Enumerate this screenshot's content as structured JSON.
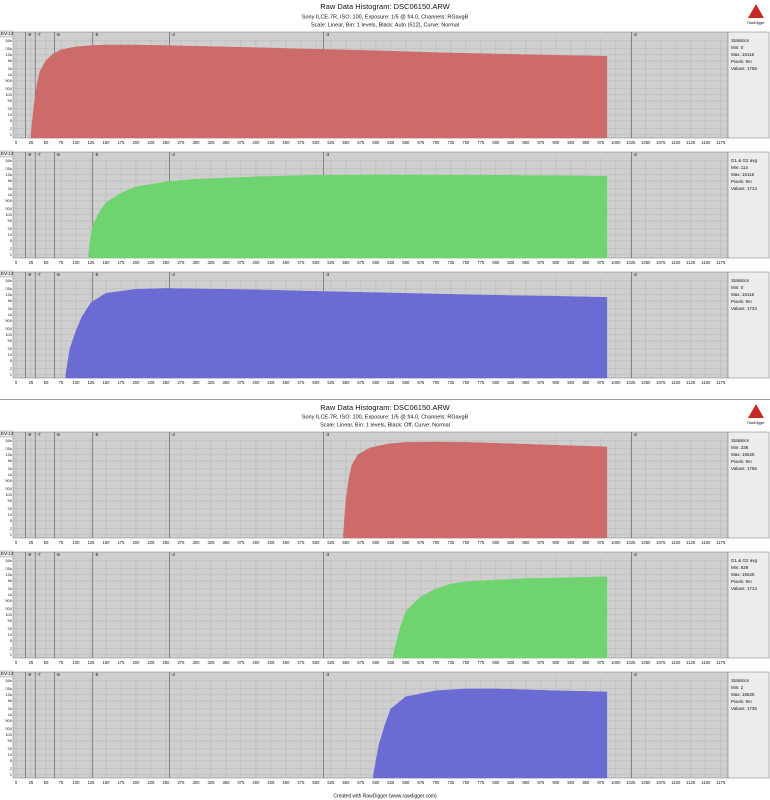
{
  "headers": [
    {
      "title": "Raw Data Histogram: DSC06150.ARW",
      "camera": "Sony ILCE-7R, ISO: 100, Exposure: 1/5 @ f/4.0, Channels: RGavgB",
      "settings": "Scale: Linear, Bin: 1 levels, Black: Auto (512), Curve: Normal",
      "logo": "RawDigger"
    },
    {
      "title": "Raw Data Histogram: DSC06150.ARW",
      "camera": "Sony ILCE-7R, ISO: 100, Exposure: 1/5 @ f/4.0, Channels: RGavgB",
      "settings": "Scale: Linear, Bin: 1 levels, Black: Off, Curve: Normal",
      "logo": "RawDigger",
      "footer": "Created with RawDigger (www.rawdigger.com)"
    }
  ],
  "chart_data": [
    {
      "type": "area",
      "color": "#cd6b6b",
      "log": true,
      "grid": true,
      "ev_label": "EV-13",
      "x": [
        25,
        30,
        35,
        40,
        50,
        60,
        75,
        100,
        125,
        150,
        200,
        250,
        300,
        400,
        500,
        600,
        700,
        800,
        900,
        985
      ],
      "values": [
        1,
        30,
        300,
        1500,
        5000,
        10000,
        18000,
        25000,
        29000,
        31000,
        31000,
        29000,
        27000,
        23000,
        19000,
        16000,
        13000,
        11000,
        9500,
        8500
      ],
      "xlim": [
        -5,
        1187
      ],
      "ylim": [
        0.7,
        70000
      ],
      "xticks": [
        0,
        25,
        50,
        75,
        100,
        125,
        150,
        175,
        200,
        225,
        250,
        275,
        300,
        325,
        350,
        375,
        400,
        425,
        450,
        475,
        500,
        525,
        550,
        575,
        600,
        625,
        650,
        675,
        700,
        725,
        750,
        775,
        800,
        825,
        850,
        875,
        900,
        925,
        950,
        975,
        1000,
        1025,
        1050,
        1075,
        1100,
        1125,
        1150,
        1175
      ],
      "yticks": [
        1,
        2,
        5,
        10,
        20,
        50,
        100,
        200,
        500,
        {
          "value": 1000,
          "label": "1k"
        },
        {
          "value": 2000,
          "label": "2k"
        },
        {
          "value": 5000,
          "label": "5k"
        },
        {
          "value": 10000,
          "label": "10k"
        },
        {
          "value": 20000,
          "label": "20k"
        },
        {
          "value": 50000,
          "label": "50k"
        }
      ],
      "evticks": [
        {
          "value": 16,
          "label": "-8"
        },
        {
          "value": 32,
          "label": "-7"
        },
        {
          "value": 64,
          "label": "-6"
        },
        {
          "value": 128,
          "label": "-5"
        },
        {
          "value": 256,
          "label": "-4"
        },
        {
          "value": 513,
          "label": "-3"
        },
        {
          "value": 1026,
          "label": "-2"
        }
      ],
      "stats": [
        "Statistics",
        "Min: 0",
        "Max: 16116",
        "Pixels: 9m",
        "Values: 1758"
      ]
    },
    {
      "type": "area",
      "color": "#6fd46f",
      "log": true,
      "grid": true,
      "ev_label": "EV-13",
      "x": [
        121,
        125,
        130,
        140,
        150,
        175,
        200,
        250,
        300,
        400,
        500,
        600,
        700,
        800,
        900,
        985
      ],
      "values": [
        1,
        10,
        40,
        150,
        400,
        1200,
        2500,
        4500,
        6000,
        8000,
        9500,
        10000,
        9800,
        9500,
        9000,
        8500
      ],
      "xlim": [
        -5,
        1187
      ],
      "ylim": [
        0.7,
        70000
      ],
      "xticks": [
        0,
        25,
        50,
        75,
        100,
        125,
        150,
        175,
        200,
        225,
        250,
        275,
        300,
        325,
        350,
        375,
        400,
        425,
        450,
        475,
        500,
        525,
        550,
        575,
        600,
        625,
        650,
        675,
        700,
        725,
        750,
        775,
        800,
        825,
        850,
        875,
        900,
        925,
        950,
        975,
        1000,
        1025,
        1050,
        1075,
        1100,
        1125,
        1150,
        1175
      ],
      "yticks": [
        1,
        2,
        5,
        10,
        20,
        50,
        100,
        200,
        500,
        {
          "value": 1000,
          "label": "1k"
        },
        {
          "value": 2000,
          "label": "2k"
        },
        {
          "value": 5000,
          "label": "5k"
        },
        {
          "value": 10000,
          "label": "10k"
        },
        {
          "value": 20000,
          "label": "20k"
        },
        {
          "value": 50000,
          "label": "50k"
        }
      ],
      "evticks": [
        {
          "value": 16,
          "label": "-8"
        },
        {
          "value": 32,
          "label": "-7"
        },
        {
          "value": 64,
          "label": "-6"
        },
        {
          "value": 128,
          "label": "-5"
        },
        {
          "value": 256,
          "label": "-4"
        },
        {
          "value": 513,
          "label": "-3"
        },
        {
          "value": 1026,
          "label": "-2"
        }
      ],
      "stats": [
        "G1 & G2 avg",
        "Min: 114",
        "Max: 16116",
        "Pixels: 9m",
        "Values: 1714"
      ]
    },
    {
      "type": "area",
      "color": "#6b6bd4",
      "log": true,
      "grid": true,
      "ev_label": "EV-13",
      "x": [
        83,
        90,
        100,
        110,
        125,
        150,
        200,
        250,
        300,
        400,
        500,
        600,
        700,
        800,
        900,
        985
      ],
      "values": [
        1,
        20,
        150,
        800,
        4000,
        12000,
        19000,
        21000,
        20000,
        18000,
        15000,
        13000,
        11000,
        9500,
        8500,
        7500
      ],
      "xlim": [
        -5,
        1187
      ],
      "ylim": [
        0.7,
        70000
      ],
      "xticks": [
        0,
        25,
        50,
        75,
        100,
        125,
        150,
        175,
        200,
        225,
        250,
        275,
        300,
        325,
        350,
        375,
        400,
        425,
        450,
        475,
        500,
        525,
        550,
        575,
        600,
        625,
        650,
        675,
        700,
        725,
        750,
        775,
        800,
        825,
        850,
        875,
        900,
        925,
        950,
        975,
        1000,
        1025,
        1050,
        1075,
        1100,
        1125,
        1150,
        1175
      ],
      "yticks": [
        1,
        2,
        5,
        10,
        20,
        50,
        100,
        200,
        500,
        {
          "value": 1000,
          "label": "1k"
        },
        {
          "value": 2000,
          "label": "2k"
        },
        {
          "value": 5000,
          "label": "5k"
        },
        {
          "value": 10000,
          "label": "10k"
        },
        {
          "value": 20000,
          "label": "20k"
        },
        {
          "value": 50000,
          "label": "50k"
        }
      ],
      "evticks": [
        {
          "value": 16,
          "label": "-8"
        },
        {
          "value": 32,
          "label": "-7"
        },
        {
          "value": 64,
          "label": "-6"
        },
        {
          "value": 128,
          "label": "-5"
        },
        {
          "value": 256,
          "label": "-4"
        },
        {
          "value": 513,
          "label": "-3"
        },
        {
          "value": 1026,
          "label": "-2"
        }
      ],
      "stats": [
        "Statistics",
        "Min: 0",
        "Max: 16116",
        "Pixels: 9m",
        "Values: 1734"
      ]
    },
    {
      "type": "area",
      "color": "#cd6b6b",
      "log": true,
      "grid": true,
      "ev_label": "EV-13",
      "x": [
        546,
        550,
        555,
        560,
        570,
        590,
        620,
        650,
        700,
        750,
        800,
        900,
        985
      ],
      "values": [
        1,
        50,
        600,
        3000,
        10000,
        22000,
        35000,
        42000,
        44000,
        42000,
        38000,
        30000,
        25000
      ],
      "xlim": [
        -5,
        1187
      ],
      "ylim": [
        0.7,
        70000
      ],
      "xticks": [
        0,
        25,
        50,
        75,
        100,
        125,
        150,
        175,
        200,
        225,
        250,
        275,
        300,
        325,
        350,
        375,
        400,
        425,
        450,
        475,
        500,
        525,
        550,
        575,
        600,
        625,
        650,
        675,
        700,
        725,
        750,
        775,
        800,
        825,
        850,
        875,
        900,
        925,
        950,
        975,
        1000,
        1025,
        1050,
        1075,
        1100,
        1125,
        1150,
        1175
      ],
      "yticks": [
        1,
        2,
        5,
        10,
        20,
        50,
        100,
        200,
        500,
        {
          "value": 1000,
          "label": "1k"
        },
        {
          "value": 2000,
          "label": "2k"
        },
        {
          "value": 5000,
          "label": "5k"
        },
        {
          "value": 10000,
          "label": "10k"
        },
        {
          "value": 20000,
          "label": "20k"
        },
        {
          "value": 50000,
          "label": "50k"
        }
      ],
      "evticks": [
        {
          "value": 16,
          "label": "-8"
        },
        {
          "value": 32,
          "label": "-7"
        },
        {
          "value": 64,
          "label": "-6"
        },
        {
          "value": 128,
          "label": "-5"
        },
        {
          "value": 256,
          "label": "-4"
        },
        {
          "value": 513,
          "label": "-3"
        },
        {
          "value": 1026,
          "label": "-2"
        }
      ],
      "stats": [
        "Statistics",
        "Min: 336",
        "Max: 16626",
        "Pixels: 9m",
        "Values: 1756"
      ]
    },
    {
      "type": "area",
      "color": "#6fd46f",
      "log": true,
      "grid": true,
      "ev_label": "EV-13",
      "x": [
        629,
        640,
        650,
        675,
        700,
        725,
        750,
        800,
        850,
        900,
        950,
        985
      ],
      "values": [
        1,
        20,
        150,
        800,
        2000,
        3500,
        4500,
        5500,
        6500,
        7000,
        7500,
        8000
      ],
      "xlim": [
        -5,
        1187
      ],
      "ylim": [
        0.7,
        70000
      ],
      "xticks": [
        0,
        25,
        50,
        75,
        100,
        125,
        150,
        175,
        200,
        225,
        250,
        275,
        300,
        325,
        350,
        375,
        400,
        425,
        450,
        475,
        500,
        525,
        550,
        575,
        600,
        625,
        650,
        675,
        700,
        725,
        750,
        775,
        800,
        825,
        850,
        875,
        900,
        925,
        950,
        975,
        1000,
        1025,
        1050,
        1075,
        1100,
        1125,
        1150,
        1175
      ],
      "yticks": [
        1,
        2,
        5,
        10,
        20,
        50,
        100,
        200,
        500,
        {
          "value": 1000,
          "label": "1k"
        },
        {
          "value": 2000,
          "label": "2k"
        },
        {
          "value": 5000,
          "label": "5k"
        },
        {
          "value": 10000,
          "label": "10k"
        },
        {
          "value": 20000,
          "label": "20k"
        },
        {
          "value": 50000,
          "label": "50k"
        }
      ],
      "evticks": [
        {
          "value": 16,
          "label": "-8"
        },
        {
          "value": 32,
          "label": "-7"
        },
        {
          "value": 64,
          "label": "-6"
        },
        {
          "value": 128,
          "label": "-5"
        },
        {
          "value": 256,
          "label": "-4"
        },
        {
          "value": 513,
          "label": "-3"
        },
        {
          "value": 1026,
          "label": "-2"
        }
      ],
      "stats": [
        "G1 & G2 avg",
        "Min: 828",
        "Max: 16626",
        "Pixels: 9m",
        "Values: 1714"
      ]
    },
    {
      "type": "area",
      "color": "#6b6bd4",
      "log": true,
      "grid": true,
      "ev_label": "EV-13",
      "x": [
        596,
        605,
        615,
        625,
        650,
        700,
        750,
        800,
        850,
        900,
        950,
        985
      ],
      "values": [
        1,
        30,
        300,
        2000,
        8000,
        16000,
        20000,
        20000,
        18000,
        16000,
        15000,
        14000
      ],
      "xlim": [
        -5,
        1187
      ],
      "ylim": [
        0.7,
        70000
      ],
      "xticks": [
        0,
        25,
        50,
        75,
        100,
        125,
        150,
        175,
        200,
        225,
        250,
        275,
        300,
        325,
        350,
        375,
        400,
        425,
        450,
        475,
        500,
        525,
        550,
        575,
        600,
        625,
        650,
        675,
        700,
        725,
        750,
        775,
        800,
        825,
        850,
        875,
        900,
        925,
        950,
        975,
        1000,
        1025,
        1050,
        1075,
        1100,
        1125,
        1150,
        1175
      ],
      "yticks": [
        1,
        2,
        5,
        10,
        20,
        50,
        100,
        200,
        500,
        {
          "value": 1000,
          "label": "1k"
        },
        {
          "value": 2000,
          "label": "2k"
        },
        {
          "value": 5000,
          "label": "5k"
        },
        {
          "value": 10000,
          "label": "10k"
        },
        {
          "value": 20000,
          "label": "20k"
        },
        {
          "value": 50000,
          "label": "50k"
        }
      ],
      "evticks": [
        {
          "value": 16,
          "label": "-8"
        },
        {
          "value": 32,
          "label": "-7"
        },
        {
          "value": 64,
          "label": "-6"
        },
        {
          "value": 128,
          "label": "-5"
        },
        {
          "value": 256,
          "label": "-4"
        },
        {
          "value": 513,
          "label": "-3"
        },
        {
          "value": 1026,
          "label": "-2"
        }
      ],
      "stats": [
        "Statistics",
        "Min: 2",
        "Max: 16626",
        "Pixels: 9m",
        "Values: 1735"
      ]
    }
  ]
}
